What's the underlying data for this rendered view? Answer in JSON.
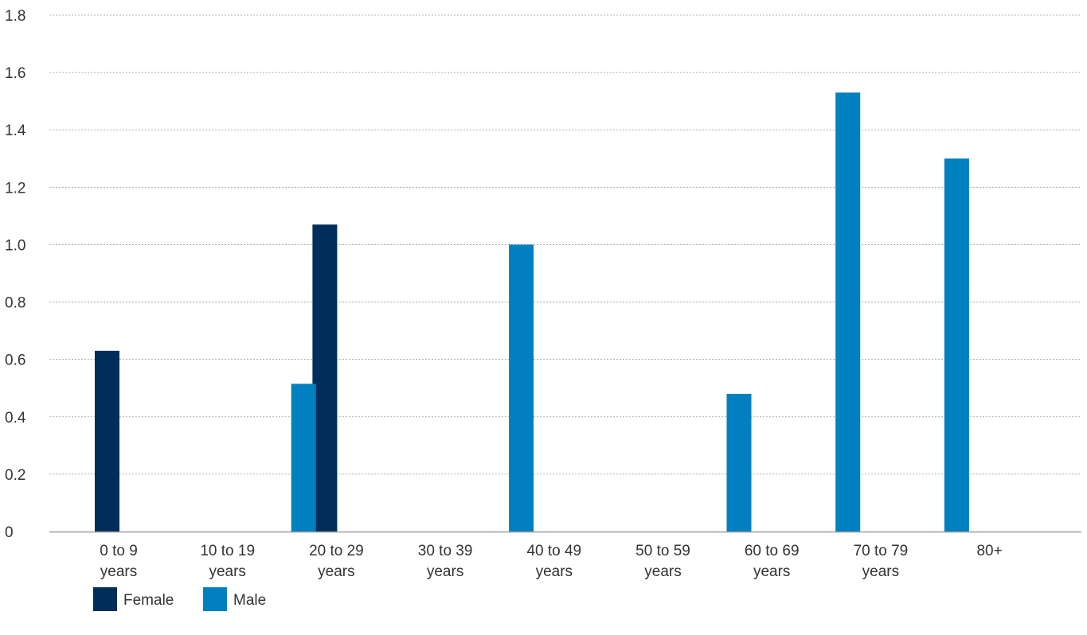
{
  "chart_data": {
    "type": "bar",
    "title": "",
    "xlabel": "",
    "ylabel": "",
    "categories": [
      [
        "0 to 9",
        "years"
      ],
      [
        "10 to 19",
        "years"
      ],
      [
        "20 to 29",
        "years"
      ],
      [
        "30 to 39",
        "years"
      ],
      [
        "40 to 49",
        "years"
      ],
      [
        "50 to 59",
        "years"
      ],
      [
        "60 to 69",
        "years"
      ],
      [
        "70 to 79",
        "years"
      ],
      [
        "80+"
      ]
    ],
    "series": [
      {
        "name": "Female",
        "color": "#002D5A",
        "values": [
          0.63,
          0,
          1.07,
          0,
          0,
          0,
          0,
          0,
          0
        ]
      },
      {
        "name": "Male",
        "color": "#0080C0",
        "values": [
          0,
          0.515,
          0,
          1.0,
          0,
          0.48,
          1.53,
          1.3,
          0
        ]
      }
    ],
    "ylim": [
      0,
      1.8
    ],
    "yticks": [
      0,
      0.2,
      0.4,
      0.6,
      0.8,
      1.0,
      1.2,
      1.4,
      1.6,
      1.8
    ],
    "ytick_labels": [
      "0",
      "0.2",
      "0.4",
      "0.6",
      "0.8",
      "1.0",
      "1.2",
      "1.4",
      "1.6",
      "1.8"
    ],
    "grid": true,
    "legend_position": "bottom-left"
  }
}
